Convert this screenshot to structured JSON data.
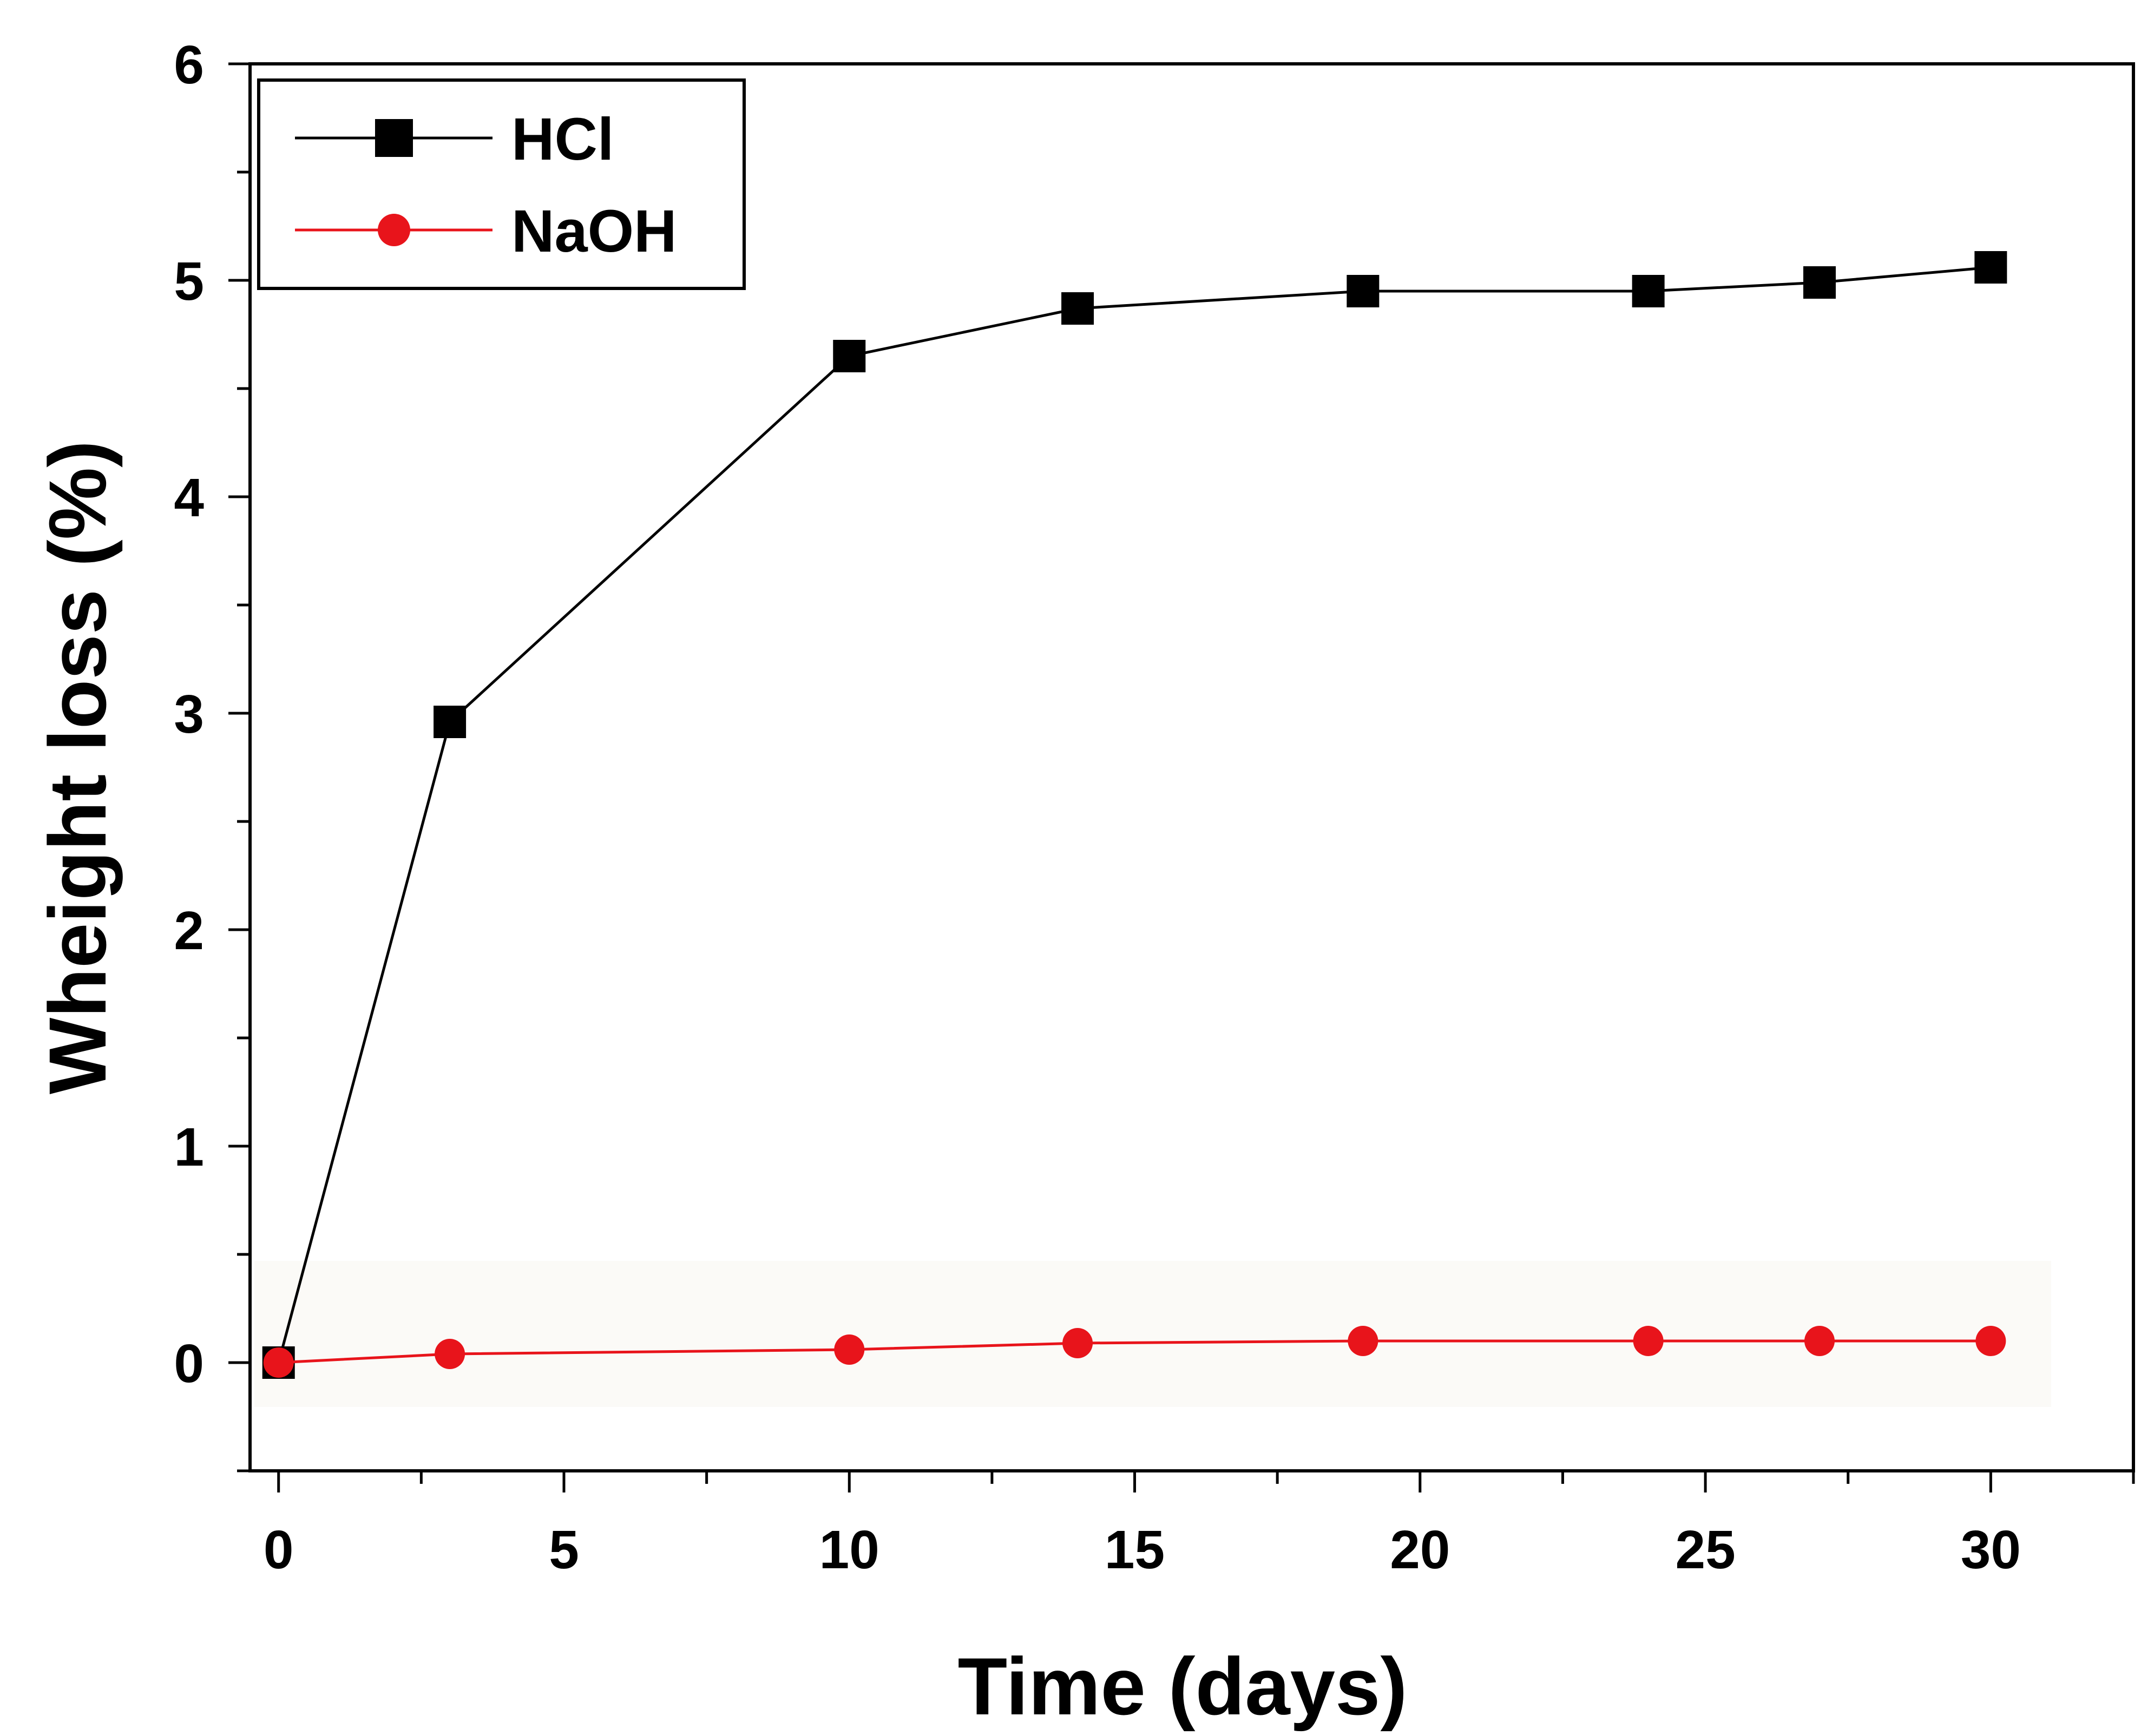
{
  "chart_data": {
    "type": "line",
    "title": "",
    "xlabel": "Time (days)",
    "ylabel": "Wheight loss (%)",
    "xlim": [
      -0.5,
      32.5
    ],
    "ylim": [
      -0.5,
      6
    ],
    "x_ticks": [
      0,
      5,
      10,
      15,
      20,
      25,
      30
    ],
    "x_minor_ticks": [
      2.5,
      7.5,
      12.5,
      17.5,
      22.5,
      27.5,
      32.5
    ],
    "y_ticks": [
      0,
      1,
      2,
      3,
      4,
      5,
      6
    ],
    "y_minor_ticks": [
      -0.5,
      0.5,
      1.5,
      2.5,
      3.5,
      4.5,
      5.5
    ],
    "x_tick_labels": [
      "0",
      "5",
      "10",
      "15",
      "20",
      "25",
      "30"
    ],
    "y_tick_labels": [
      "0",
      "1",
      "2",
      "3",
      "4",
      "5",
      "6"
    ],
    "grid": false,
    "legend_position": "top-left",
    "series": [
      {
        "name": "HCl",
        "color": "#000000",
        "marker": "square",
        "x": [
          0,
          3,
          10,
          14,
          19,
          24,
          27,
          30
        ],
        "y": [
          0,
          2.96,
          4.65,
          4.87,
          4.95,
          4.95,
          4.99,
          5.06
        ]
      },
      {
        "name": "NaOH",
        "color": "#e8141b",
        "marker": "circle",
        "x": [
          0,
          3,
          10,
          14,
          19,
          24,
          27,
          30
        ],
        "y": [
          0,
          0.04,
          0.06,
          0.09,
          0.1,
          0.1,
          0.1,
          0.1
        ]
      }
    ]
  },
  "legend": {
    "hcl_label": "HCl",
    "naoh_label": "NaOH"
  }
}
